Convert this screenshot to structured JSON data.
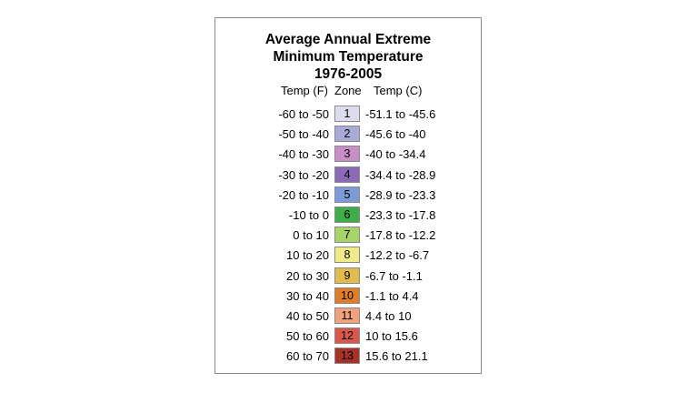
{
  "title": {
    "line1": "Average Annual Extreme",
    "line2": "Minimum Temperature",
    "line3": "1976-2005"
  },
  "headers": {
    "temp_f": "Temp (F)",
    "zone": "Zone",
    "temp_c": "Temp (C)"
  },
  "zones": [
    {
      "temp_f": "-60 to -50",
      "zone": "1",
      "temp_c": "-51.1 to -45.6",
      "color": "#dcdcee"
    },
    {
      "temp_f": "-50 to -40",
      "zone": "2",
      "temp_c": "-45.6 to -40",
      "color": "#aaaad6"
    },
    {
      "temp_f": "-40 to -30",
      "zone": "3",
      "temp_c": "-40 to -34.4",
      "color": "#c88fc6"
    },
    {
      "temp_f": "-30 to -20",
      "zone": "4",
      "temp_c": "-34.4 to -28.9",
      "color": "#8c6bb6"
    },
    {
      "temp_f": "-20 to -10",
      "zone": "5",
      "temp_c": "-28.9 to -23.3",
      "color": "#7b9ad8"
    },
    {
      "temp_f": "-10 to 0",
      "zone": "6",
      "temp_c": "-23.3 to -17.8",
      "color": "#3fae4a"
    },
    {
      "temp_f": "0 to 10",
      "zone": "7",
      "temp_c": "-17.8 to -12.2",
      "color": "#a6d36a"
    },
    {
      "temp_f": "10 to 20",
      "zone": "8",
      "temp_c": "-12.2 to -6.7",
      "color": "#f0eb8a"
    },
    {
      "temp_f": "20 to 30",
      "zone": "9",
      "temp_c": "-6.7 to -1.1",
      "color": "#e0bc4e"
    },
    {
      "temp_f": "30 to 40",
      "zone": "10",
      "temp_c": "-1.1 to 4.4",
      "color": "#e07d29"
    },
    {
      "temp_f": "40 to 50",
      "zone": "11",
      "temp_c": "4.4 to 10",
      "color": "#f0a27c"
    },
    {
      "temp_f": "50 to 60",
      "zone": "12",
      "temp_c": "10 to 15.6",
      "color": "#d9574c"
    },
    {
      "temp_f": "60 to 70",
      "zone": "13",
      "temp_c": "15.6 to 21.1",
      "color": "#a8322a"
    }
  ]
}
